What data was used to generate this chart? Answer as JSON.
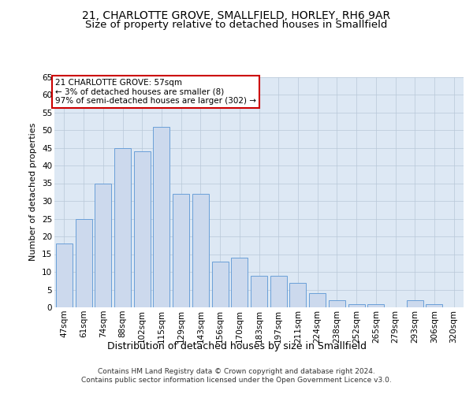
{
  "title1": "21, CHARLOTTE GROVE, SMALLFIELD, HORLEY, RH6 9AR",
  "title2": "Size of property relative to detached houses in Smallfield",
  "xlabel": "Distribution of detached houses by size in Smallfield",
  "ylabel": "Number of detached properties",
  "categories": [
    "47sqm",
    "61sqm",
    "74sqm",
    "88sqm",
    "102sqm",
    "115sqm",
    "129sqm",
    "143sqm",
    "156sqm",
    "170sqm",
    "183sqm",
    "197sqm",
    "211sqm",
    "224sqm",
    "238sqm",
    "252sqm",
    "265sqm",
    "279sqm",
    "293sqm",
    "306sqm",
    "320sqm"
  ],
  "values": [
    18,
    25,
    35,
    45,
    44,
    51,
    32,
    32,
    13,
    14,
    9,
    9,
    7,
    4,
    2,
    1,
    1,
    0,
    2,
    1,
    0
  ],
  "bar_color": "#ccd9ed",
  "bar_edge_color": "#6a9fd8",
  "annotation_box_text": "21 CHARLOTTE GROVE: 57sqm\n← 3% of detached houses are smaller (8)\n97% of semi-detached houses are larger (302) →",
  "annotation_box_color": "white",
  "annotation_box_edge_color": "#cc0000",
  "footer_text": "Contains HM Land Registry data © Crown copyright and database right 2024.\nContains public sector information licensed under the Open Government Licence v3.0.",
  "ylim": [
    0,
    65
  ],
  "yticks": [
    0,
    5,
    10,
    15,
    20,
    25,
    30,
    35,
    40,
    45,
    50,
    55,
    60,
    65
  ],
  "grid_color": "#b8c8d8",
  "background_color": "#dde8f4",
  "fig_background": "#ffffff",
  "title1_fontsize": 10,
  "title2_fontsize": 9.5,
  "tick_fontsize": 7.5,
  "ylabel_fontsize": 8,
  "xlabel_fontsize": 9,
  "annotation_fontsize": 7.5,
  "footer_fontsize": 6.5
}
